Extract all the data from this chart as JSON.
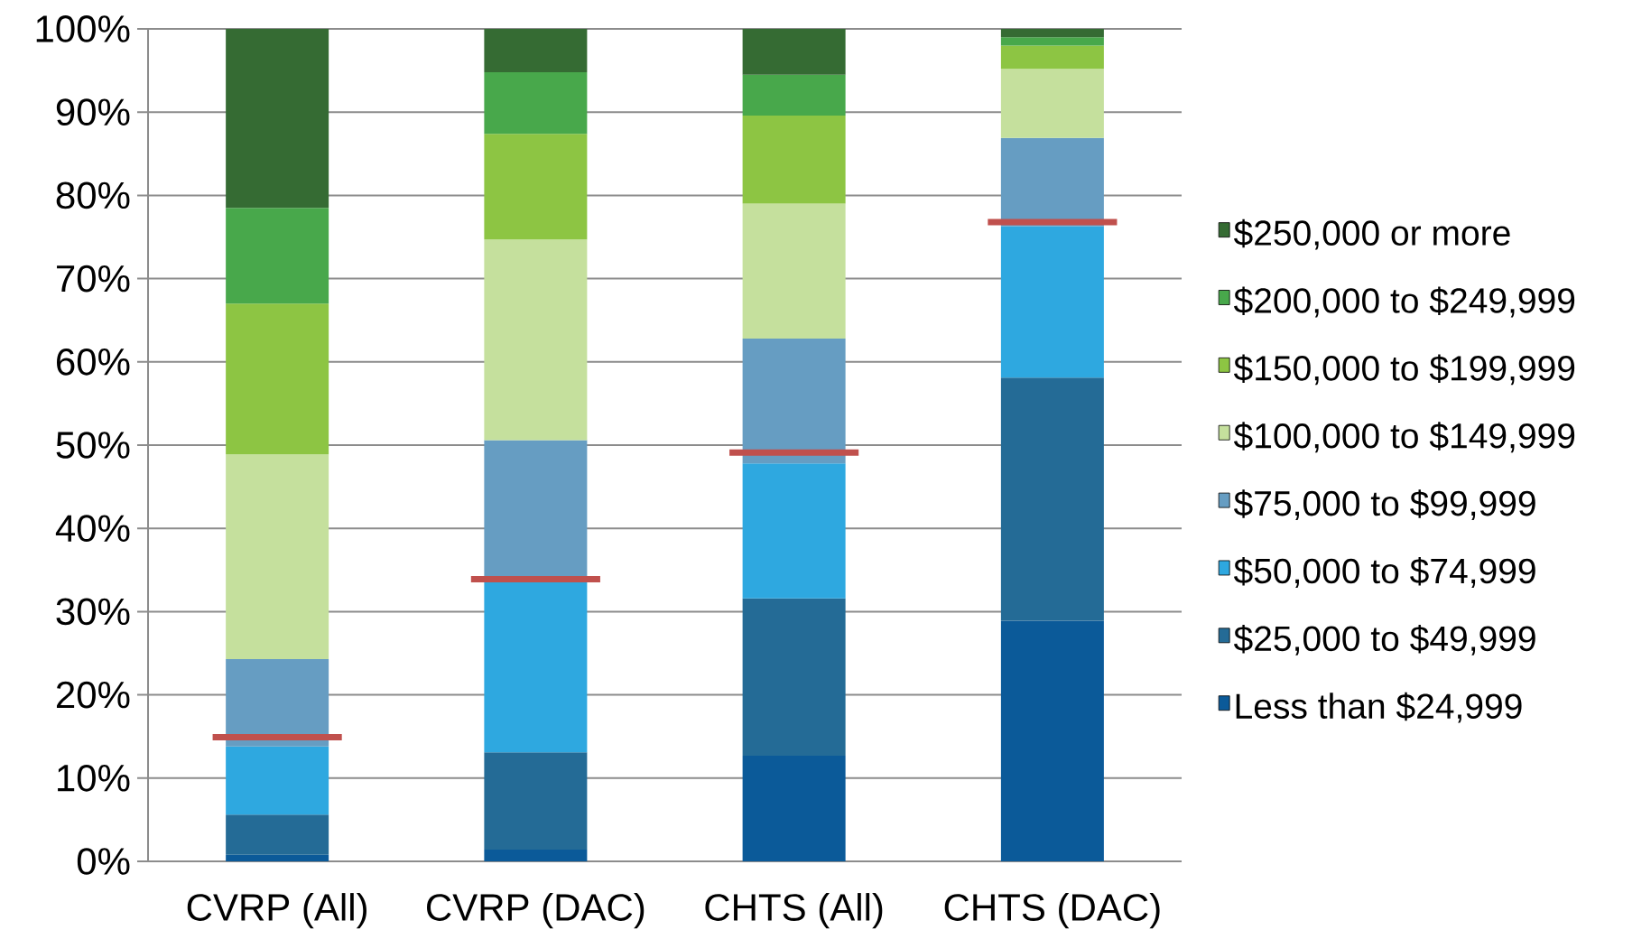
{
  "chart_data": {
    "type": "bar",
    "stacked": true,
    "categories": [
      "CVRP (All)",
      "CVRP (DAC)",
      "CHTS (All)",
      "CHTS (DAC)"
    ],
    "ylim": [
      0,
      100
    ],
    "yticks": [
      {
        "value": 0,
        "label": "0%"
      },
      {
        "value": 10,
        "label": "10%"
      },
      {
        "value": 20,
        "label": "20%"
      },
      {
        "value": 30,
        "label": "30%"
      },
      {
        "value": 40,
        "label": "40%"
      },
      {
        "value": 50,
        "label": "50%"
      },
      {
        "value": 60,
        "label": "60%"
      },
      {
        "value": 70,
        "label": "70%"
      },
      {
        "value": 80,
        "label": "80%"
      },
      {
        "value": 90,
        "label": "90%"
      },
      {
        "value": 100,
        "label": "100%"
      }
    ],
    "grid": "y",
    "legend": "right",
    "series": [
      {
        "name": "Less than $24,999",
        "color": "#0b5a99",
        "values": [
          0.8,
          1.4,
          12.7,
          28.9
        ]
      },
      {
        "name": "$25,000 to $49,999",
        "color": "#246b96",
        "values": [
          4.8,
          11.7,
          18.9,
          29.2
        ]
      },
      {
        "name": "$50,000 to $74,999",
        "color": "#2ea8e0",
        "values": [
          8.2,
          20.5,
          16.2,
          18.2
        ]
      },
      {
        "name": "$75,000 to $99,999",
        "color": "#669dc2",
        "values": [
          10.5,
          17.0,
          15.0,
          10.6
        ]
      },
      {
        "name": "$100,000 to $149,999",
        "color": "#c5e09d",
        "values": [
          24.6,
          24.1,
          16.2,
          8.3
        ]
      },
      {
        "name": "$150,000 to $199,999",
        "color": "#8dc543",
        "values": [
          18.1,
          12.7,
          10.6,
          2.8
        ]
      },
      {
        "name": "$200,000 to $249,999",
        "color": "#48a84b",
        "values": [
          11.5,
          7.4,
          4.9,
          1.0
        ]
      },
      {
        "name": "$250,000 or more",
        "color": "#356b33",
        "values": [
          21.5,
          5.2,
          5.5,
          1.0
        ]
      }
    ],
    "ref_lines": [
      {
        "axis": "y",
        "value": 14.9,
        "color": "#c0504d"
      },
      {
        "axis": "y",
        "value": 33.9,
        "color": "#c0504d"
      },
      {
        "axis": "y",
        "value": 49.1,
        "color": "#c0504d"
      },
      {
        "axis": "y",
        "value": 76.8,
        "color": "#c0504d"
      }
    ]
  }
}
